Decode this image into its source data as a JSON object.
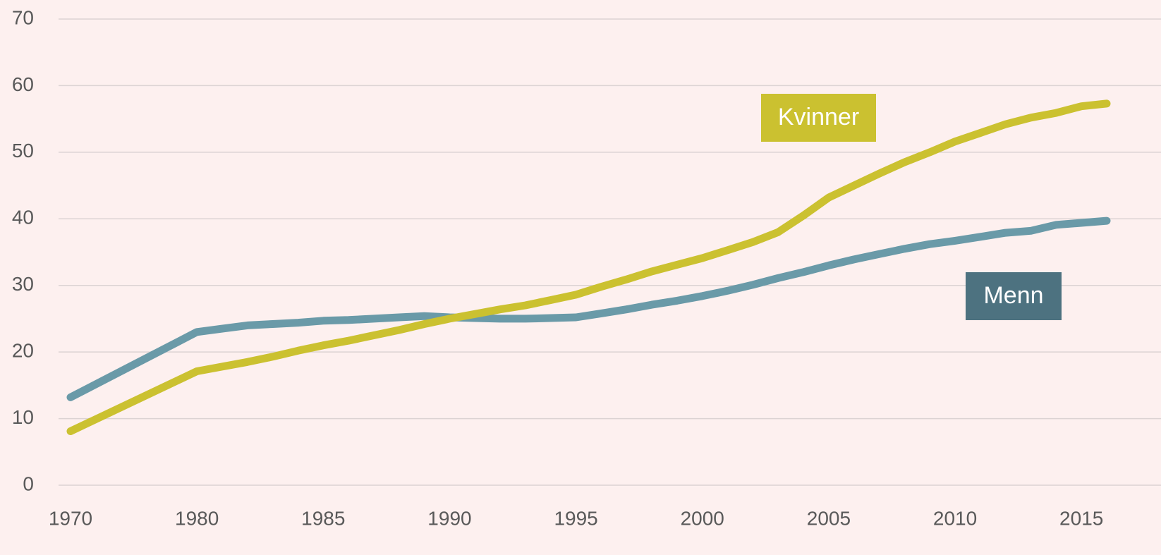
{
  "chart_data": {
    "type": "line",
    "categories": [
      "1970",
      "1980",
      null,
      null,
      null,
      null,
      "1985",
      null,
      null,
      null,
      null,
      "1990",
      null,
      null,
      null,
      null,
      "1995",
      null,
      null,
      null,
      null,
      "2000",
      null,
      null,
      null,
      null,
      "2005",
      null,
      null,
      null,
      null,
      "2010",
      null,
      null,
      null,
      null,
      "2015",
      null
    ],
    "series": [
      {
        "name": "Menn",
        "color": "#6a9aa8",
        "label_color": "#4d7280",
        "values": [
          13.2,
          23.0,
          23.5,
          24.0,
          24.2,
          24.4,
          24.7,
          24.8,
          25.0,
          25.2,
          25.4,
          25.2,
          25.1,
          25.0,
          25.0,
          25.1,
          25.2,
          25.8,
          26.4,
          27.1,
          27.7,
          28.4,
          29.2,
          30.1,
          31.1,
          32.0,
          33.0,
          33.9,
          34.7,
          35.5,
          36.2,
          36.7,
          37.3,
          37.9,
          38.2,
          39.1,
          39.4,
          39.7
        ]
      },
      {
        "name": "Kvinner",
        "color": "#cbc130",
        "label_color": "#cbc130",
        "values": [
          8.1,
          17.1,
          17.8,
          18.5,
          19.3,
          20.2,
          21.0,
          21.7,
          22.5,
          23.3,
          24.2,
          25.0,
          25.7,
          26.4,
          27.0,
          27.8,
          28.6,
          29.8,
          30.9,
          32.1,
          33.1,
          34.1,
          35.3,
          36.5,
          38.0,
          40.5,
          43.2,
          45.0,
          46.8,
          48.5,
          50.0,
          51.6,
          52.9,
          54.2,
          55.2,
          55.9,
          56.9,
          57.3
        ]
      }
    ],
    "ylim": [
      0,
      70
    ],
    "yticks": [
      0,
      10,
      20,
      30,
      40,
      50,
      60,
      70
    ],
    "grid": true
  }
}
